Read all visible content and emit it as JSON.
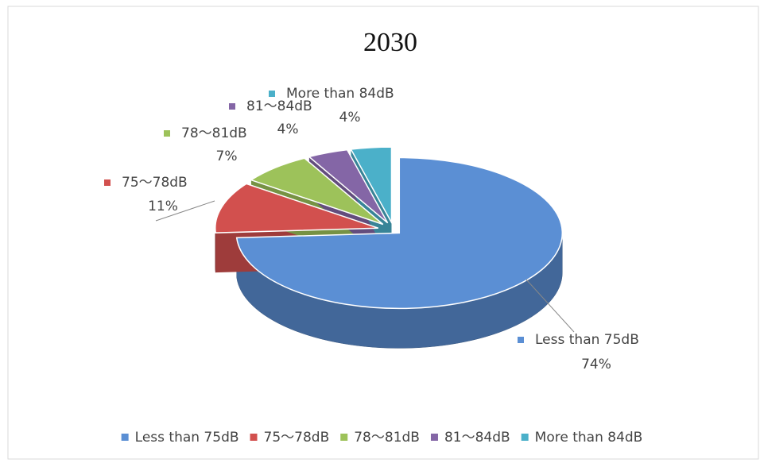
{
  "chart_data": {
    "type": "pie",
    "title": "2030",
    "categories": [
      "Less than 75dB",
      "75～78dB",
      "78～81dB",
      "81～84dB",
      "More than 84dB"
    ],
    "values": [
      74,
      11,
      7,
      4,
      4
    ],
    "value_labels": [
      "74%",
      "11%",
      "7%",
      "4%",
      "4%"
    ],
    "colors": [
      "#5b8fd4",
      "#d2504e",
      "#9dc25a",
      "#8466a6",
      "#4bb0c9"
    ],
    "legend": "bottom"
  }
}
